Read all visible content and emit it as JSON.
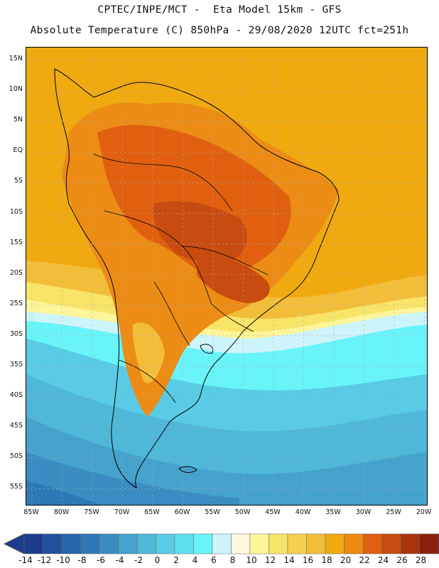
{
  "header": {
    "line1": "CPTEC/INPE/MCT -  Eta Model 15km - GFS",
    "line2": "Absolute Temperature (C) 850hPa - 29/08/2020 12UTC fct=251h"
  },
  "map": {
    "region": "South America",
    "variable": "Absolute Temperature (C) 850hPa",
    "lat_labels": [
      "15N",
      "10N",
      "5N",
      "EQ",
      "5S",
      "10S",
      "15S",
      "20S",
      "25S",
      "30S",
      "35S",
      "40S",
      "45S",
      "50S",
      "55S"
    ],
    "lon_labels": [
      "85W",
      "80W",
      "75W",
      "70W",
      "65W",
      "60W",
      "55W",
      "50W",
      "45W",
      "40W",
      "35W",
      "30W",
      "25W",
      "20W"
    ],
    "gridlines": "dotted"
  },
  "colorbar": {
    "labels": [
      "-14",
      "-12",
      "-10",
      "-8",
      "-6",
      "-4",
      "-2",
      "0",
      "2",
      "4",
      "6",
      "8",
      "10",
      "12",
      "14",
      "16",
      "18",
      "20",
      "22",
      "24",
      "26",
      "28"
    ],
    "colors": [
      "#1e3c8c",
      "#23509a",
      "#2864a8",
      "#2f78b6",
      "#3a8cc2",
      "#45a2cc",
      "#4fb7d8",
      "#59cbe4",
      "#5fdff0",
      "#68f4f8",
      "#cdf4fa",
      "#fff8dc",
      "#fdf59a",
      "#f8e468",
      "#f4d050",
      "#f2be3a",
      "#f0aa10",
      "#ec8c14",
      "#e06010",
      "#c84c10",
      "#a8340e",
      "#8a200a",
      "#6e140e",
      "#8c0032"
    ]
  }
}
